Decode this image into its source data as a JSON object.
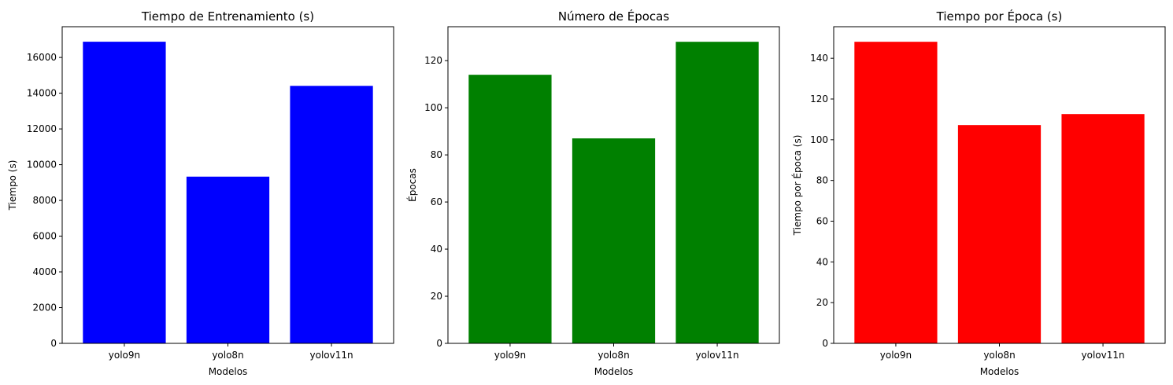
{
  "chart_data": [
    {
      "type": "bar",
      "title": "Tiempo de Entrenamiento (s)",
      "xlabel": "Modelos",
      "ylabel": "Tiempo (s)",
      "categories": [
        "yolo9n",
        "yolo8n",
        "yolov11n"
      ],
      "values": [
        16880,
        9330,
        14410
      ],
      "ylim": [
        0,
        17720
      ],
      "yticks": [
        0,
        2000,
        4000,
        6000,
        8000,
        10000,
        12000,
        14000,
        16000
      ],
      "color": "#0000ff"
    },
    {
      "type": "bar",
      "title": "Número de Épocas",
      "xlabel": "Modelos",
      "ylabel": "Épocas",
      "categories": [
        "yolo9n",
        "yolo8n",
        "yolov11n"
      ],
      "values": [
        114,
        87,
        128
      ],
      "ylim": [
        0,
        134.4
      ],
      "yticks": [
        0,
        20,
        40,
        60,
        80,
        100,
        120
      ],
      "color": "#008000"
    },
    {
      "type": "bar",
      "title": "Tiempo por Época (s)",
      "xlabel": "Modelos",
      "ylabel": "Tiempo por Época (s)",
      "categories": [
        "yolo9n",
        "yolo8n",
        "yolov11n"
      ],
      "values": [
        148.1,
        107.2,
        112.6
      ],
      "ylim": [
        0,
        155.5
      ],
      "yticks": [
        0,
        20,
        40,
        60,
        80,
        100,
        120,
        140
      ],
      "color": "#ff0000"
    }
  ]
}
